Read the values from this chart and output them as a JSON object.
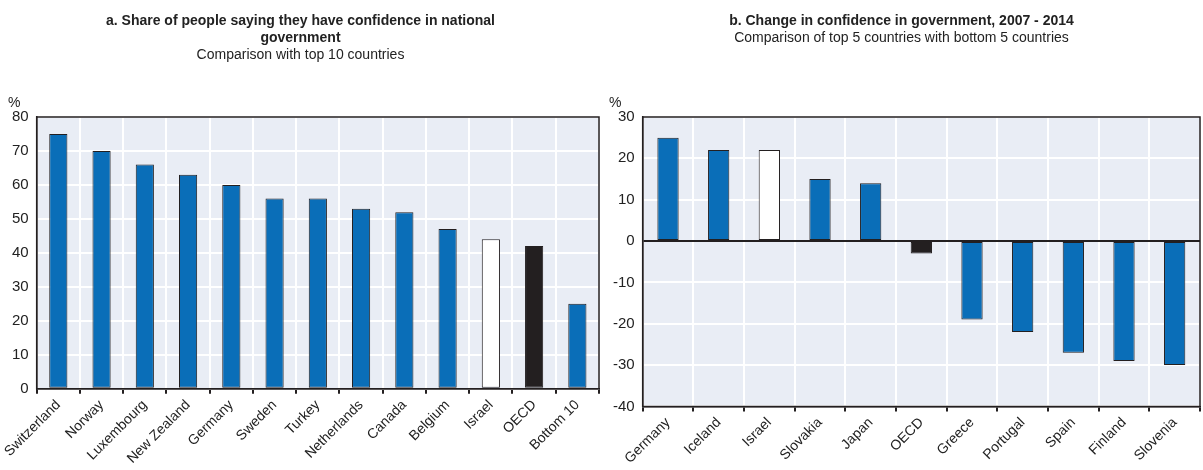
{
  "chart_data": [
    {
      "type": "bar",
      "title": "a. Share of people saying they have confidence in national government",
      "subtitle": "Comparison with top 10 countries",
      "ylabel": "%",
      "categories": [
        "Switzerland",
        "Norway",
        "Luxembourg",
        "New Zealand",
        "Germany",
        "Sweden",
        "Turkey",
        "Netherlands",
        "Canada",
        "Belgium",
        "Israel",
        "OECD",
        "Bottom 10"
      ],
      "values": [
        75,
        70,
        66,
        63,
        60,
        56,
        56,
        53,
        52,
        47,
        44,
        42,
        25
      ],
      "colors": [
        "#0a6eb8",
        "#0a6eb8",
        "#0a6eb8",
        "#0a6eb8",
        "#0a6eb8",
        "#0a6eb8",
        "#0a6eb8",
        "#0a6eb8",
        "#0a6eb8",
        "#0a6eb8",
        "#ffffff",
        "#231f20",
        "#0a6eb8"
      ],
      "ylim": [
        0,
        80
      ],
      "yticks": [
        0,
        10,
        20,
        30,
        40,
        50,
        60,
        70,
        80
      ],
      "grid": true,
      "legend": false
    },
    {
      "type": "bar",
      "title": "b. Change in confidence in government, 2007 - 2014",
      "subtitle": "Comparison of top 5 countries with bottom 5 countries",
      "ylabel": "%",
      "categories": [
        "Germany",
        "Iceland",
        "Israel",
        "Slovakia",
        "Japan",
        "OECD",
        "Greece",
        "Portugal",
        "Spain",
        "Finland",
        "Slovenia"
      ],
      "values": [
        25,
        22,
        22,
        15,
        14,
        -3,
        -19,
        -22,
        -27,
        -29,
        -30
      ],
      "colors": [
        "#0a6eb8",
        "#0a6eb8",
        "#ffffff",
        "#0a6eb8",
        "#0a6eb8",
        "#231f20",
        "#0a6eb8",
        "#0a6eb8",
        "#0a6eb8",
        "#0a6eb8",
        "#0a6eb8"
      ],
      "ylim": [
        -40,
        30
      ],
      "yticks": [
        -40,
        -30,
        -20,
        -10,
        0,
        10,
        20,
        30
      ],
      "grid": true,
      "legend": false
    }
  ]
}
